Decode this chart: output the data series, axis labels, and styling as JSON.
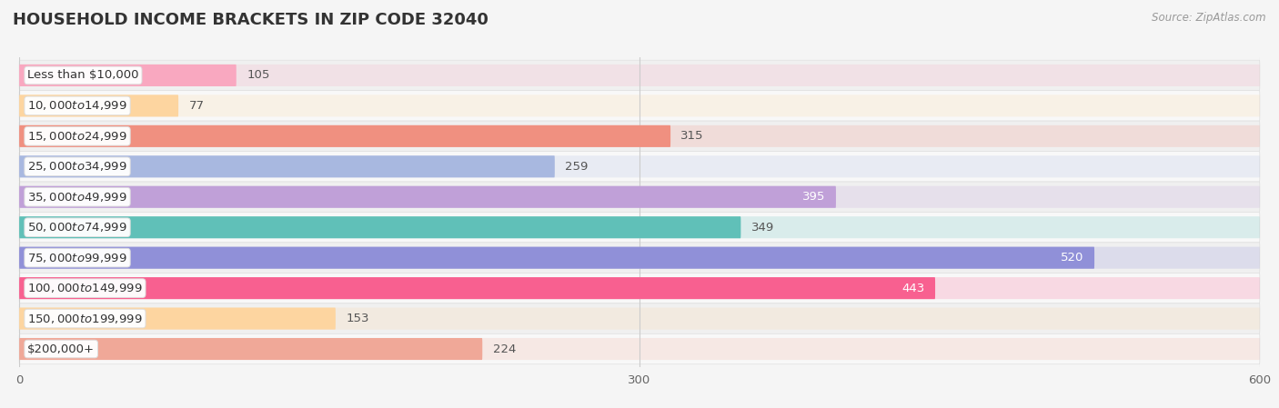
{
  "title": "HOUSEHOLD INCOME BRACKETS IN ZIP CODE 32040",
  "source": "Source: ZipAtlas.com",
  "categories": [
    "Less than $10,000",
    "$10,000 to $14,999",
    "$15,000 to $24,999",
    "$25,000 to $34,999",
    "$35,000 to $49,999",
    "$50,000 to $74,999",
    "$75,000 to $99,999",
    "$100,000 to $149,999",
    "$150,000 to $199,999",
    "$200,000+"
  ],
  "values": [
    105,
    77,
    315,
    259,
    395,
    349,
    520,
    443,
    153,
    224
  ],
  "bar_colors": [
    "#f9a8c0",
    "#fdd5a0",
    "#f09080",
    "#a8b8e0",
    "#c0a0d8",
    "#60c0b8",
    "#9090d8",
    "#f86090",
    "#fdd5a0",
    "#f0a898"
  ],
  "label_colors": [
    "#555555",
    "#555555",
    "#555555",
    "#555555",
    "#ffffff",
    "#555555",
    "#ffffff",
    "#ffffff",
    "#555555",
    "#555555"
  ],
  "xlim": [
    0,
    600
  ],
  "xticks": [
    0,
    300,
    600
  ],
  "background_color": "#f5f5f5",
  "row_colors": [
    "#f0f0f0",
    "#f8f8f8"
  ],
  "title_fontsize": 13,
  "label_fontsize": 9.5,
  "value_fontsize": 9.5
}
